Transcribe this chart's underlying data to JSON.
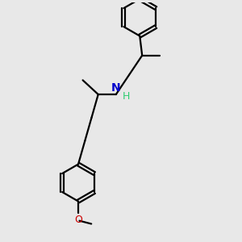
{
  "bg_color": "#e8e8e8",
  "bond_color": "#000000",
  "N_color": "#0000cc",
  "O_color": "#cc0000",
  "line_width": 1.6,
  "font_size": 8.5,
  "fig_size": [
    3.0,
    3.0
  ],
  "dpi": 100,
  "xlim": [
    0,
    10
  ],
  "ylim": [
    0,
    10
  ]
}
